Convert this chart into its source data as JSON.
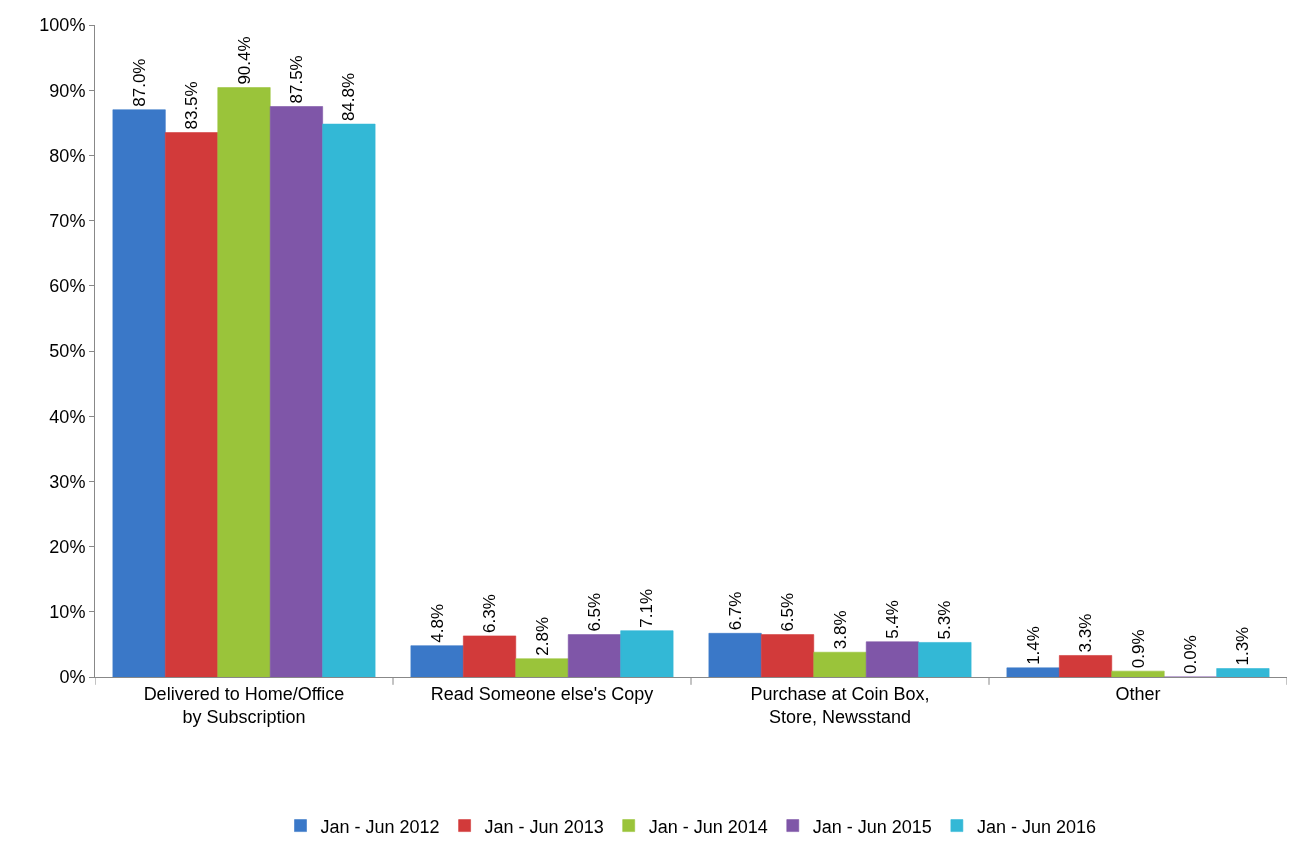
{
  "chart_data": {
    "type": "bar",
    "categories": [
      "Delivered to Home/Office by Subscription",
      "Read Someone else's Copy",
      "Purchase at Coin Box, Store, Newsstand",
      "Other"
    ],
    "series": [
      {
        "name": "Jan - Jun 2012",
        "color": "#3a78c8",
        "values": [
          87.0,
          4.8,
          6.7,
          1.4
        ],
        "value_labels": [
          "87.0%",
          "4.8%",
          "6.7%",
          "1.4%"
        ]
      },
      {
        "name": "Jan - Jun 2013",
        "color": "#d23a3a",
        "values": [
          83.5,
          6.3,
          6.5,
          3.3
        ],
        "value_labels": [
          "83.5%",
          "6.3%",
          "6.5%",
          "3.3%"
        ]
      },
      {
        "name": "Jan - Jun 2014",
        "color": "#9ac43a",
        "values": [
          90.4,
          2.8,
          3.8,
          0.9
        ],
        "value_labels": [
          "90.4%",
          "2.8%",
          "3.8%",
          "0.9%"
        ]
      },
      {
        "name": "Jan - Jun 2015",
        "color": "#7f56a8",
        "values": [
          87.5,
          6.5,
          5.4,
          0.0
        ],
        "value_labels": [
          "87.5%",
          "6.5%",
          "5.4%",
          "0.0%"
        ]
      },
      {
        "name": "Jan - Jun 2016",
        "color": "#33b8d6",
        "values": [
          84.8,
          7.1,
          5.3,
          1.3
        ],
        "value_labels": [
          "84.8%",
          "7.1%",
          "5.3%",
          "1.3%"
        ]
      }
    ],
    "ylim": [
      0,
      100
    ],
    "yticks": [
      {
        "value": 0,
        "label": "0%"
      },
      {
        "value": 10,
        "label": "10%"
      },
      {
        "value": 20,
        "label": "20%"
      },
      {
        "value": 30,
        "label": "30%"
      },
      {
        "value": 40,
        "label": "40%"
      },
      {
        "value": 50,
        "label": "50%"
      },
      {
        "value": 60,
        "label": "60%"
      },
      {
        "value": 70,
        "label": "70%"
      },
      {
        "value": 80,
        "label": "80%"
      },
      {
        "value": 90,
        "label": "90%"
      },
      {
        "value": 100,
        "label": "100%"
      }
    ],
    "legend": "bottom"
  }
}
